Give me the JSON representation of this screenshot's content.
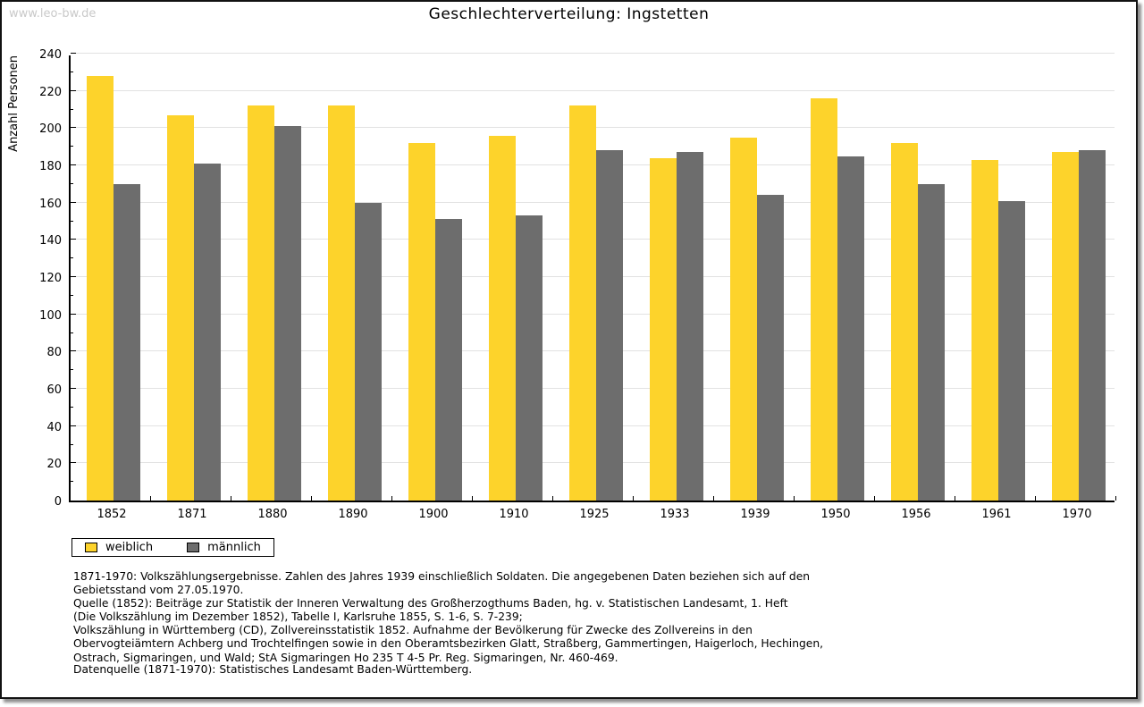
{
  "watermark": "www.leo-bw.de",
  "title": "Geschlechterverteilung: Ingstetten",
  "chart_data": {
    "type": "bar",
    "title": "Geschlechterverteilung: Ingstetten",
    "categories": [
      "1852",
      "1871",
      "1880",
      "1890",
      "1900",
      "1910",
      "1925",
      "1933",
      "1939",
      "1950",
      "1956",
      "1961",
      "1970"
    ],
    "series": [
      {
        "name": "weiblich",
        "color": "#FDD32B",
        "values": [
          228,
          207,
          212,
          212,
          192,
          196,
          212,
          184,
          195,
          216,
          192,
          183,
          187
        ]
      },
      {
        "name": "männlich",
        "color": "#6D6D6D",
        "values": [
          170,
          181,
          201,
          160,
          151,
          153,
          188,
          187,
          164,
          185,
          170,
          161,
          188
        ]
      }
    ],
    "xlabel": "",
    "ylabel": "Anzahl Personen",
    "ylim": [
      0,
      240
    ],
    "ytick_step": 20,
    "yminor_step": 10,
    "grid": true,
    "gridline_color": "#e2e2e2",
    "legend_position": "bottom-left"
  },
  "footnotes": [
    "1871-1970: Volkszählungsergebnisse. Zahlen des Jahres 1939 einschließlich Soldaten. Die angegebenen Daten beziehen sich auf den",
    "Gebietsstand vom 27.05.1970.",
    "Quelle (1852): Beiträge zur Statistik der Inneren Verwaltung des Großherzogthums Baden, hg. v. Statistischen Landesamt, 1. Heft",
    "(Die Volkszählung im Dezember 1852), Tabelle I, Karlsruhe 1855, S. 1-6, S. 7-239;",
    "Volkszählung in Württemberg (CD), Zollvereinsstatistik 1852. Aufnahme der Bevölkerung für Zwecke des Zollvereins in den",
    "Obervogteiämtern Achberg und Trochtelfingen sowie in den Oberamtsbezirken Glatt, Straßberg, Gammertingen, Haigerloch, Hechingen,",
    "Ostrach, Sigmaringen, und Wald; StA Sigmaringen Ho 235 T 4-5 Pr. Reg. Sigmaringen, Nr. 460-469."
  ],
  "datasource": "Datenquelle (1871-1970): Statistisches Landesamt Baden-Württemberg."
}
